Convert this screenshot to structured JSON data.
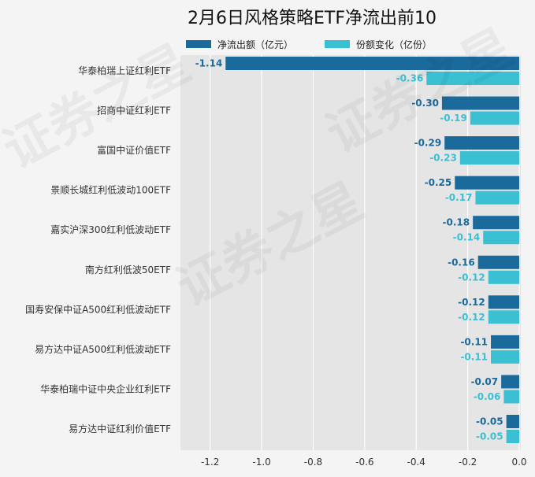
{
  "chart_data": {
    "type": "bar",
    "orientation": "horizontal",
    "title": "2月6日风格策略ETF净流出前10",
    "categories": [
      "华泰柏瑞上证红利ETF",
      "招商中证红利ETF",
      "富国中证价值ETF",
      "景顺长城红利低波动100ETF",
      "嘉实沪深300红利低波动ETF",
      "南方红利低波50ETF",
      "国寿安保中证A500红利低波动ETF",
      "易方达中证A500红利低波动ETF",
      "华泰柏瑞中证中央企业红利ETF",
      "易方达中证红利价值ETF"
    ],
    "series": [
      {
        "name": "净流出额（亿元）",
        "color": "#1b6a9c",
        "values": [
          -1.14,
          -0.3,
          -0.29,
          -0.25,
          -0.18,
          -0.16,
          -0.12,
          -0.11,
          -0.07,
          -0.05
        ],
        "labels": [
          "-1.14",
          "-0.30",
          "-0.29",
          "-0.25",
          "-0.18",
          "-0.16",
          "-0.12",
          "-0.11",
          "-0.07",
          "-0.05"
        ]
      },
      {
        "name": "份额变化（亿份）",
        "color": "#3bbfd3",
        "values": [
          -0.36,
          -0.19,
          -0.23,
          -0.17,
          -0.14,
          -0.12,
          -0.12,
          -0.11,
          -0.06,
          -0.05
        ],
        "labels": [
          "-0.36",
          "-0.19",
          "-0.23",
          "-0.17",
          "-0.14",
          "-0.12",
          "-0.12",
          "-0.11",
          "-0.06",
          "-0.05"
        ]
      }
    ],
    "xlim": [
      -1.3,
      0.0
    ],
    "xticks": [
      -1.2,
      -1.0,
      -0.8,
      -0.6,
      -0.4,
      -0.2,
      0.0
    ],
    "xtick_labels": [
      "-1.2",
      "-1.0",
      "-0.8",
      "-0.6",
      "-0.4",
      "-0.2",
      "0.0"
    ],
    "grid": true,
    "legend": "top-center",
    "background": "#e5e5e5",
    "xlabel": "",
    "ylabel": ""
  },
  "watermark": {
    "text_a": "证券之星",
    "text_b": "证券之星",
    "text_c": "证券之星"
  }
}
